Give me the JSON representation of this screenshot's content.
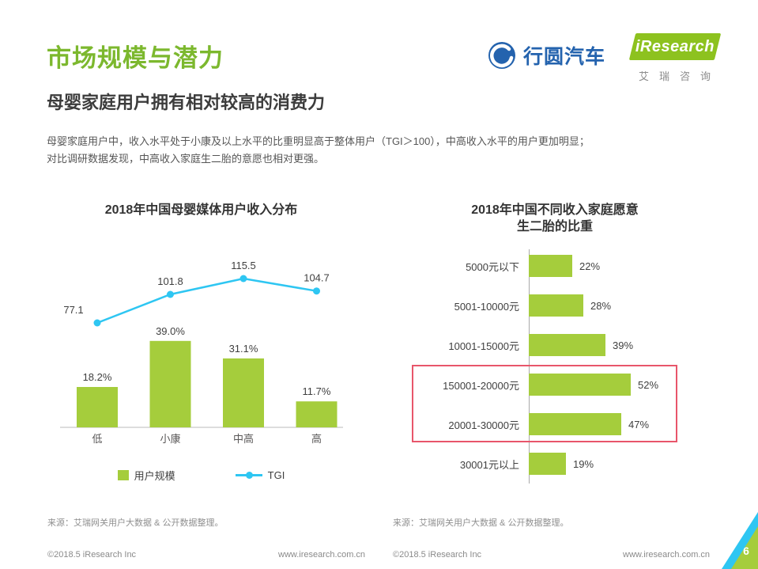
{
  "colors": {
    "accent_green": "#7cb82e",
    "bar_green": "#a5cd3c",
    "line_cyan": "#2ec6f2",
    "highlight_red": "#e8566b",
    "logo_blue": "#2463ae",
    "logo_green": "#8dc21f"
  },
  "header": {
    "title": "市场规模与潜力",
    "subtitle": "母婴家庭用户拥有相对较高的消费力",
    "body_line1": "母婴家庭用户中，收入水平处于小康及以上水平的比重明显高于整体用户（TGI＞100），中高收入水平的用户更加明显；",
    "body_line2": "对比调研数据发现，中高收入家庭生二胎的意愿也相对更强。"
  },
  "logos": {
    "xingyuan_text": "行圆汽车",
    "iresearch_text": "iResearch",
    "iresearch_cn": "艾瑞咨询"
  },
  "chart_data": [
    {
      "type": "bar",
      "title": "2018年中国母婴媒体用户收入分布",
      "categories": [
        "低",
        "小康",
        "中高",
        "高"
      ],
      "series": [
        {
          "name": "用户规模",
          "type": "bar",
          "unit": "%",
          "values": [
            18.2,
            39.0,
            31.1,
            11.7
          ]
        },
        {
          "name": "TGI",
          "type": "line",
          "values": [
            77.1,
            101.8,
            115.5,
            104.7
          ]
        }
      ],
      "legend_position": "bottom",
      "source": "来源：艾瑞网关用户大数据 & 公开数据整理。"
    },
    {
      "type": "bar",
      "orientation": "horizontal",
      "title_line1": "2018年中国不同收入家庭愿意",
      "title_line2": "生二胎的比重",
      "categories": [
        "5000元以下",
        "5001-10000元",
        "10001-15000元",
        "150001-20000元",
        "20001-30000元",
        "30001元以上"
      ],
      "values": [
        22,
        28,
        39,
        52,
        47,
        19
      ],
      "unit": "%",
      "highlighted_categories": [
        "150001-20000元",
        "20001-30000元"
      ],
      "source": "来源：艾瑞网关用户大数据 & 公开数据整理。"
    }
  ],
  "footer": {
    "copyright_left": "©2018.5 iResearch Inc",
    "site_left": "www.iresearch.com.cn",
    "copyright_right": "©2018.5 iResearch Inc",
    "site_right": "www.iresearch.com.cn",
    "page_number": "6"
  }
}
